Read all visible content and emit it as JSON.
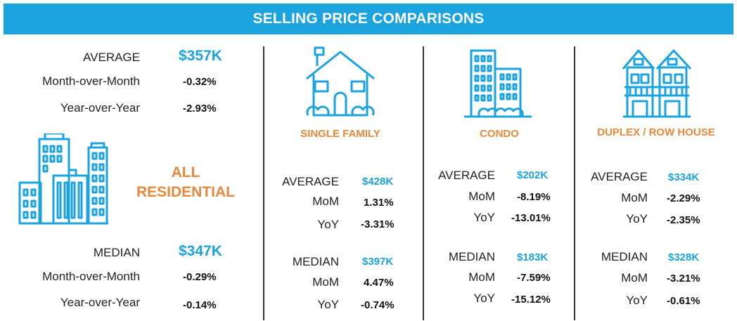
{
  "header": {
    "title": "SELLING PRICE COMPARISONS"
  },
  "all_residential": {
    "category": [
      "ALL",
      "RESIDENTIAL"
    ],
    "icon": "city-buildings-icon",
    "average": {
      "label": "AVERAGE",
      "value": "$357K",
      "mom_label": "Month-over-Month",
      "mom": "-0.32%",
      "yoy_label": "Year-over-Year",
      "yoy": "-2.93%"
    },
    "median": {
      "label": "MEDIAN",
      "value": "$347K",
      "mom_label": "Month-over-Month",
      "mom": "-0.29%",
      "yoy_label": "Year-over-Year",
      "yoy": "-0.14%"
    }
  },
  "single_family": {
    "category": "SINGLE FAMILY",
    "icon": "house-icon",
    "average": {
      "label": "AVERAGE",
      "value": "$428K",
      "mom_label": "MoM",
      "mom": "1.31%",
      "yoy_label": "YoY",
      "yoy": "-3.31%"
    },
    "median": {
      "label": "MEDIAN",
      "value": "$397K",
      "mom_label": "MoM",
      "mom": "4.47%",
      "yoy_label": "YoY",
      "yoy": "-0.74%"
    }
  },
  "condo": {
    "category": "CONDO",
    "icon": "condo-towers-icon",
    "average": {
      "label": "AVERAGE",
      "value": "$202K",
      "mom_label": "MoM",
      "mom": "-8.19%",
      "yoy_label": "YoY",
      "yoy": "-13.01%"
    },
    "median": {
      "label": "MEDIAN",
      "value": "$183K",
      "mom_label": "MoM",
      "mom": "-7.59%",
      "yoy_label": "YoY",
      "yoy": "-15.12%"
    }
  },
  "duplex": {
    "category": "DUPLEX / ROW HOUSE",
    "icon": "row-house-icon",
    "average": {
      "label": "AVERAGE",
      "value": "$334K",
      "mom_label": "MoM",
      "mom": "-2.29%",
      "yoy_label": "YoY",
      "yoy": "-2.35%"
    },
    "median": {
      "label": "MEDIAN",
      "value": "$328K",
      "mom_label": "MoM",
      "mom": "-3.21%",
      "yoy_label": "YoY",
      "yoy": "-0.61%"
    }
  },
  "colors": {
    "accent_blue": "#1aa3dc",
    "accent_orange": "#e8883a"
  }
}
